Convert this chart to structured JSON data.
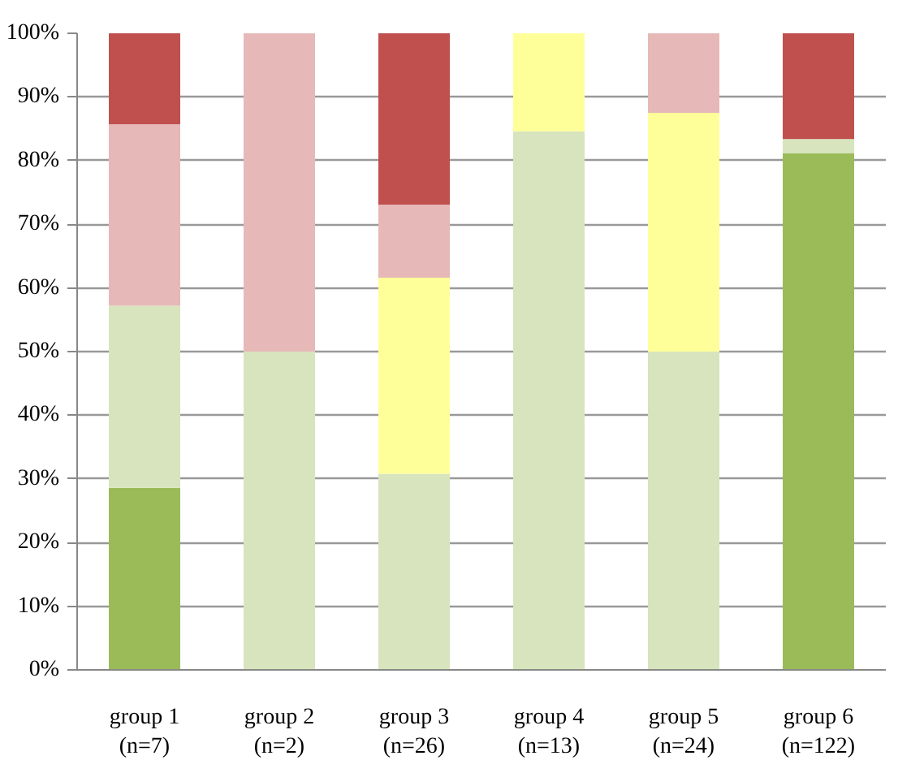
{
  "chart_data": {
    "type": "bar",
    "stacked": true,
    "categories": [
      "group 1\n(n=7)",
      "group 2\n(n=2)",
      "group 3\n(n=26)",
      "group 4\n(n=13)",
      "group 5\n(n=24)",
      "group 6\n(n=122)"
    ],
    "series": [
      {
        "color": "#9bbb59",
        "values": [
          28.6,
          0,
          0,
          0,
          0,
          81.2
        ]
      },
      {
        "color": "#d7e4bd",
        "values": [
          28.6,
          50,
          30.8,
          84.6,
          50,
          2.2
        ]
      },
      {
        "color": "#ffff99",
        "values": [
          0,
          0,
          30.8,
          15.4,
          37.5,
          0
        ]
      },
      {
        "color": "#e6b9b8",
        "values": [
          28.5,
          50,
          11.5,
          0,
          12.5,
          0
        ]
      },
      {
        "color": "#c0504d",
        "values": [
          14.3,
          0,
          26.9,
          0,
          0,
          16.6
        ]
      }
    ],
    "ylim": [
      0,
      100
    ],
    "yticks": [
      {
        "value": 0,
        "label": "0%"
      },
      {
        "value": 10,
        "label": "10%"
      },
      {
        "value": 20,
        "label": "20%"
      },
      {
        "value": 30,
        "label": "30%"
      },
      {
        "value": 40,
        "label": "40%"
      },
      {
        "value": 50,
        "label": "50%"
      },
      {
        "value": 60,
        "label": "60%"
      },
      {
        "value": 70,
        "label": "70%"
      },
      {
        "value": 80,
        "label": "80%"
      },
      {
        "value": 90,
        "label": "90%"
      },
      {
        "value": 100,
        "label": "100%"
      }
    ],
    "grid": "y"
  }
}
